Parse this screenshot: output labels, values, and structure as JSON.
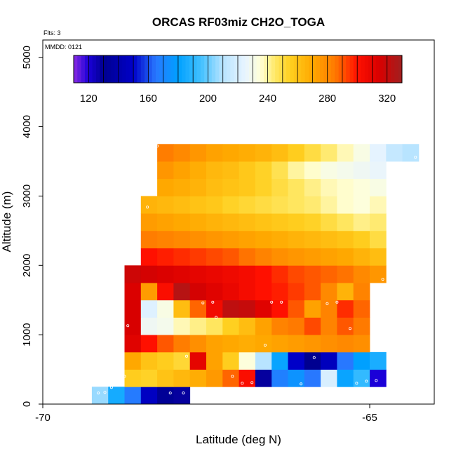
{
  "chart_data": {
    "type": "heatmap",
    "title": "ORCAS RF03miz CH2O_TOGA",
    "flights_label": "Flts: 3",
    "date_label": "MMDD: 0121",
    "xlabel": "Latitude (deg N)",
    "ylabel": "Altitude (m)",
    "xlim": [
      -70,
      -64.0
    ],
    "ylim": [
      0,
      5250
    ],
    "xticks": [
      {
        "value": -70,
        "label": "-70"
      },
      {
        "value": -65,
        "label": "-65"
      }
    ],
    "yticks": [
      {
        "value": 0,
        "label": "0"
      },
      {
        "value": 1000,
        "label": "1000"
      },
      {
        "value": 2000,
        "label": "2000"
      },
      {
        "value": 3000,
        "label": "3000"
      },
      {
        "value": 4000,
        "label": "4000"
      },
      {
        "value": 5000,
        "label": "5000"
      }
    ],
    "colorbar": {
      "min": 110,
      "max": 330,
      "ticks": [
        {
          "value": 120,
          "label": "120"
        },
        {
          "value": 160,
          "label": "160"
        },
        {
          "value": 200,
          "label": "200"
        },
        {
          "value": 240,
          "label": "240"
        },
        {
          "value": 280,
          "label": "280"
        },
        {
          "value": 320,
          "label": "320"
        }
      ],
      "stops": [
        {
          "v": 110,
          "color": "#8a2be2"
        },
        {
          "v": 120,
          "color": "#1a00d8"
        },
        {
          "v": 130,
          "color": "#000090"
        },
        {
          "v": 150,
          "color": "#0000c8"
        },
        {
          "v": 165,
          "color": "#2878ff"
        },
        {
          "v": 180,
          "color": "#00a0ff"
        },
        {
          "v": 195,
          "color": "#40c0ff"
        },
        {
          "v": 210,
          "color": "#b8e4ff"
        },
        {
          "v": 225,
          "color": "#e8f4ff"
        },
        {
          "v": 235,
          "color": "#ffffd8"
        },
        {
          "v": 245,
          "color": "#ffe866"
        },
        {
          "v": 255,
          "color": "#ffd020"
        },
        {
          "v": 270,
          "color": "#ffa800"
        },
        {
          "v": 285,
          "color": "#ff7a00"
        },
        {
          "v": 300,
          "color": "#ff1000"
        },
        {
          "v": 315,
          "color": "#d80000"
        },
        {
          "v": 330,
          "color": "#a02020"
        }
      ]
    },
    "cell_width_deg": 0.25,
    "cell_height_m": 250,
    "rows": [
      {
        "alt": 0,
        "lat0": -69.25,
        "values": [
          206,
          185,
          166,
          148,
          132,
          128
        ]
      },
      {
        "alt": 250,
        "lat0": -68.75,
        "values": [
          256,
          254,
          260,
          264,
          268,
          275,
          288,
          302,
          128,
          168,
          175,
          165,
          220,
          182,
          192,
          120
        ]
      },
      {
        "alt": 500,
        "lat0": -68.75,
        "values": [
          270,
          260,
          256,
          252,
          310,
          272,
          256,
          234,
          210,
          182,
          150,
          130,
          146,
          165,
          180,
          186
        ]
      },
      {
        "alt": 750,
        "lat0": -68.75,
        "values": [
          312,
          300,
          290,
          284,
          278,
          272,
          270,
          268,
          270,
          272,
          274,
          276,
          278,
          280,
          278
        ]
      },
      {
        "alt": 1000,
        "lat0": -68.75,
        "values": [
          315,
          228,
          230,
          238,
          242,
          246,
          255,
          262,
          272,
          282,
          285,
          292,
          282,
          290,
          285
        ]
      },
      {
        "alt": 1250,
        "lat0": -68.75,
        "values": [
          315,
          222,
          232,
          262,
          288,
          305,
          322,
          320,
          312,
          300,
          290,
          272,
          282,
          296,
          288
        ]
      },
      {
        "alt": 1500,
        "lat0": -68.75,
        "values": [
          314,
          274,
          302,
          324,
          316,
          312,
          308,
          304,
          300,
          298,
          294,
          290,
          280,
          266,
          282
        ]
      },
      {
        "alt": 1750,
        "lat0": -68.75,
        "values": [
          318,
          316,
          314,
          312,
          310,
          308,
          306,
          304,
          300,
          296,
          292,
          290,
          288,
          286,
          280,
          276
        ]
      },
      {
        "alt": 2000,
        "lat0": -68.5,
        "values": [
          300,
          298,
          296,
          294,
          292,
          290,
          286,
          282,
          278,
          276,
          274,
          272,
          270,
          266,
          262
        ]
      },
      {
        "alt": 2250,
        "lat0": -68.5,
        "values": [
          284,
          282,
          280,
          278,
          276,
          274,
          272,
          270,
          268,
          266,
          264,
          262,
          260,
          256,
          250
        ]
      },
      {
        "alt": 2500,
        "lat0": -68.5,
        "values": [
          274,
          272,
          270,
          268,
          266,
          264,
          262,
          260,
          258,
          256,
          254,
          250,
          246,
          242,
          244
        ]
      },
      {
        "alt": 2750,
        "lat0": -68.5,
        "values": [
          266,
          264,
          262,
          260,
          258,
          254,
          252,
          250,
          248,
          246,
          244,
          240,
          236,
          234,
          238
        ]
      },
      {
        "alt": 3000,
        "lat0": -68.25,
        "values": [
          270,
          268,
          266,
          262,
          260,
          258,
          254,
          250,
          246,
          242,
          238,
          236,
          234,
          232
        ]
      },
      {
        "alt": 3250,
        "lat0": -68.25,
        "values": [
          276,
          272,
          268,
          264,
          262,
          258,
          254,
          248,
          240,
          236,
          232,
          230,
          228,
          226
        ]
      },
      {
        "alt": 3500,
        "lat0": -68.25,
        "values": [
          284,
          280,
          276,
          272,
          270,
          268,
          266,
          262,
          256,
          250,
          244,
          238,
          232,
          224,
          214,
          210
        ]
      }
    ],
    "flight_points": [
      {
        "lat": -69.15,
        "alt": 160
      },
      {
        "lat": -69.05,
        "alt": 170
      },
      {
        "lat": -68.95,
        "alt": 240
      },
      {
        "lat": -68.75,
        "alt": 400
      },
      {
        "lat": -68.05,
        "alt": 160
      },
      {
        "lat": -67.85,
        "alt": 160
      },
      {
        "lat": -67.8,
        "alt": 690
      },
      {
        "lat": -67.55,
        "alt": 1460
      },
      {
        "lat": -67.4,
        "alt": 1470
      },
      {
        "lat": -67.35,
        "alt": 1250
      },
      {
        "lat": -67.1,
        "alt": 400
      },
      {
        "lat": -66.95,
        "alt": 300
      },
      {
        "lat": -66.8,
        "alt": 310
      },
      {
        "lat": -66.6,
        "alt": 850
      },
      {
        "lat": -66.5,
        "alt": 1470
      },
      {
        "lat": -66.35,
        "alt": 1470
      },
      {
        "lat": -66.05,
        "alt": 290
      },
      {
        "lat": -65.85,
        "alt": 670
      },
      {
        "lat": -65.65,
        "alt": 1450
      },
      {
        "lat": -65.5,
        "alt": 1470
      },
      {
        "lat": -65.3,
        "alt": 1090
      },
      {
        "lat": -65.2,
        "alt": 300
      },
      {
        "lat": -65.05,
        "alt": 330
      },
      {
        "lat": -64.9,
        "alt": 340
      },
      {
        "lat": -64.95,
        "alt": 920
      },
      {
        "lat": -64.8,
        "alt": 1800
      },
      {
        "lat": -64.3,
        "alt": 3560
      },
      {
        "lat": -68.25,
        "alt": 3720
      },
      {
        "lat": -68.4,
        "alt": 2840
      },
      {
        "lat": -68.9,
        "alt": 1970
      },
      {
        "lat": -68.95,
        "alt": 1080
      },
      {
        "lat": -68.7,
        "alt": 1130
      }
    ]
  }
}
